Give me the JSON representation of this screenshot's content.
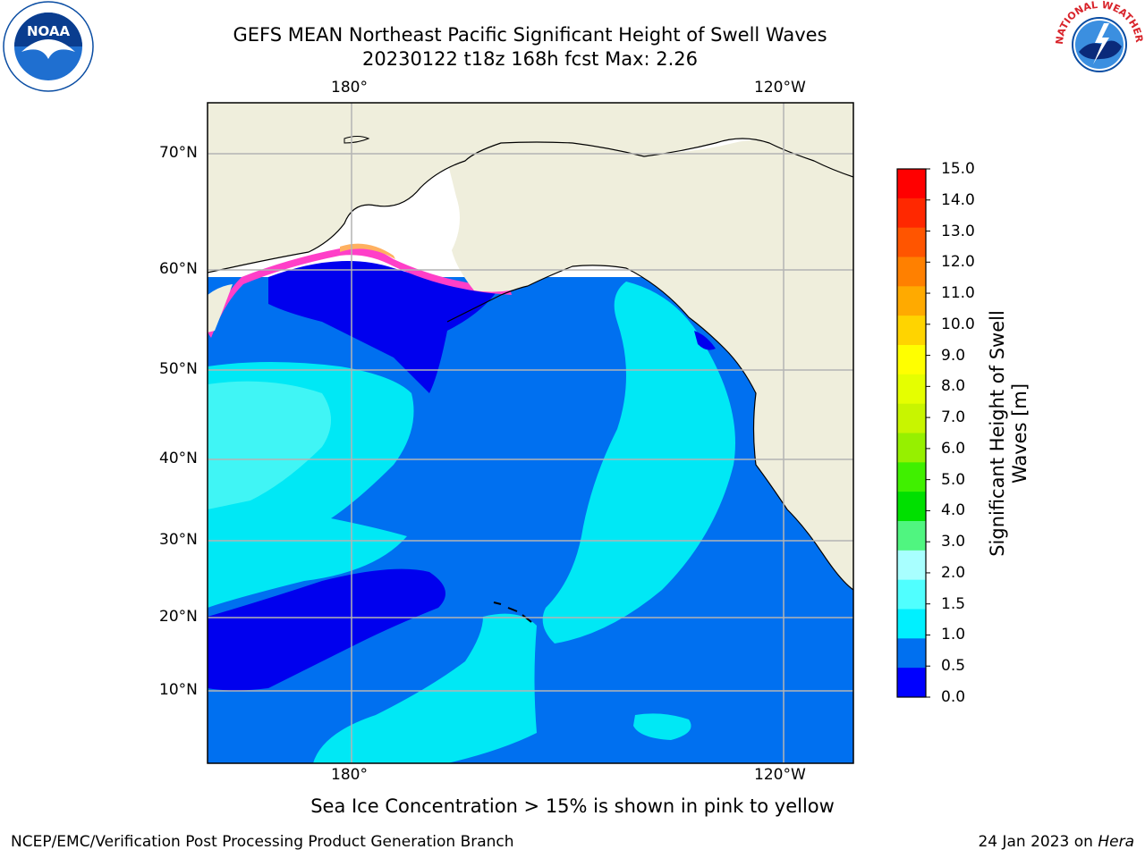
{
  "header": {
    "title_line1": "GEFS MEAN Northeast Pacific Significant Height of Swell Waves",
    "title_line2": "20230122 t18z 168h fcst   Max: 2.26"
  },
  "logos": {
    "left": {
      "icon": "noaa-logo",
      "color": "#0a4da3"
    },
    "right": {
      "icon": "national-weather-service-logo",
      "text": "NATIONAL WEATHER SERVICE",
      "color": "#d8232a"
    }
  },
  "map": {
    "lon_labels_top": [
      "180°",
      "120°W"
    ],
    "lon_labels_bottom": [
      "180°",
      "120°W"
    ],
    "lat_labels": [
      "70°N",
      "60°N",
      "50°N",
      "40°N",
      "30°N",
      "20°N",
      "10°N"
    ],
    "grid": true,
    "land_color": "#efeedc",
    "colors": {
      "very_low": "#0000ee",
      "low": "#0070f0",
      "medium": "#00e8f5",
      "medium_high": "#40f5f5",
      "ice_pink": "#ff3fc8",
      "ice_yellow": "#ffd400"
    }
  },
  "colorbar": {
    "label_line1": "Significant Height of Swell",
    "label_line2": "Waves [m]",
    "ticks": [
      "15.0",
      "14.0",
      "13.0",
      "12.0",
      "11.0",
      "10.0",
      "9.0",
      "8.0",
      "7.0",
      "6.0",
      "5.0",
      "4.0",
      "3.0",
      "2.0",
      "1.5",
      "1.0",
      "0.5",
      "0.0"
    ],
    "colors": [
      "#ff0000",
      "#ff2800",
      "#ff5500",
      "#ff8000",
      "#ffaa00",
      "#ffd400",
      "#ffff00",
      "#e5ff00",
      "#c8f500",
      "#96f000",
      "#40f000",
      "#00e000",
      "#50f580",
      "#a8ffff",
      "#50ffff",
      "#00f0ff",
      "#0070f0",
      "#0000ff"
    ]
  },
  "notes": {
    "ice_note": "Sea Ice Concentration > 15% is shown in pink to yellow",
    "footer_left": "NCEP/EMC/Verification Post Processing Product Generation Branch",
    "footer_date": "24 Jan 2023 on ",
    "footer_host": "Hera"
  }
}
